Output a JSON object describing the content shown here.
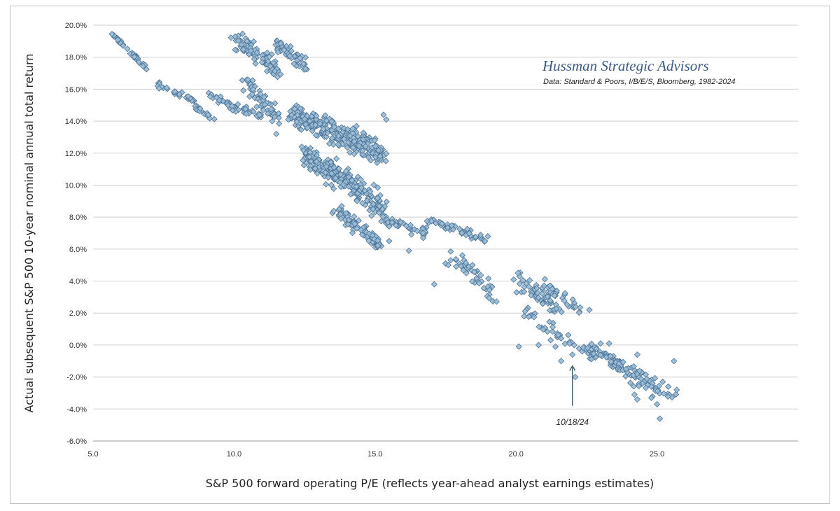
{
  "chart_data": {
    "type": "scatter",
    "title": "",
    "brand": "Hussman Strategic Advisors",
    "source_note": "Data: Standard & Poors, I/B/E/S, Bloomberg, 1982-2024",
    "xlabel": "S&P 500 forward operating P/E (reflects year-ahead analyst earnings estimates)",
    "ylabel": "Actual subsequent S&P 500 10-year nominal annual total return",
    "xlim": [
      5,
      30
    ],
    "ylim": [
      -6,
      20
    ],
    "x_ticks": [
      5,
      10,
      15,
      20,
      25
    ],
    "x_tick_labels": [
      "5.0",
      "10.0",
      "15.0",
      "20.0",
      "25.0"
    ],
    "y_ticks": [
      -6,
      -4,
      -2,
      0,
      2,
      4,
      6,
      8,
      10,
      12,
      14,
      16,
      18,
      20
    ],
    "y_tick_labels": [
      "-6.0%",
      "-4.0%",
      "-2.0%",
      "0.0%",
      "2.0%",
      "4.0%",
      "6.0%",
      "8.0%",
      "10.0%",
      "12.0%",
      "14.0%",
      "16.0%",
      "18.0%",
      "20.0%"
    ],
    "grid": "horizontal",
    "marker": "diamond",
    "marker_color": "#9bbdd6",
    "marker_edge": "#4d7396",
    "annotation": {
      "text": "10/18/24",
      "x": 22.0,
      "y": -0.4
    },
    "clusters": [
      {
        "x": [
          5.7,
          6.9
        ],
        "y": [
          19.4,
          17.3
        ],
        "n": 32,
        "spread": 0.22
      },
      {
        "x": [
          7.3,
          8.6
        ],
        "y": [
          16.3,
          15.3
        ],
        "n": 32,
        "spread": 0.28
      },
      {
        "x": [
          8.6,
          9.3
        ],
        "y": [
          14.9,
          14.1
        ],
        "n": 18,
        "spread": 0.2
      },
      {
        "x": [
          9.1,
          11.0
        ],
        "y": [
          15.6,
          14.3
        ],
        "n": 45,
        "spread": 0.4
      },
      {
        "x": [
          10.0,
          11.6
        ],
        "y": [
          19.2,
          17.2
        ],
        "n": 85,
        "spread": 0.95
      },
      {
        "x": [
          11.5,
          12.6
        ],
        "y": [
          18.8,
          17.4
        ],
        "n": 55,
        "spread": 0.7
      },
      {
        "x": [
          10.4,
          11.6
        ],
        "y": [
          16.4,
          14.2
        ],
        "n": 60,
        "spread": 0.9
      },
      {
        "x": [
          12.0,
          15.3
        ],
        "y": [
          14.5,
          12.0
        ],
        "n": 300,
        "spread": 1.1
      },
      {
        "x": [
          12.5,
          15.3
        ],
        "y": [
          12.0,
          8.6
        ],
        "n": 250,
        "spread": 1.1
      },
      {
        "x": [
          13.6,
          15.2
        ],
        "y": [
          8.5,
          6.2
        ],
        "n": 90,
        "spread": 0.7
      },
      {
        "x": [
          15.2,
          17.0
        ],
        "y": [
          7.9,
          6.9
        ],
        "n": 45,
        "spread": 0.45
      },
      {
        "x": [
          16.8,
          18.9
        ],
        "y": [
          7.8,
          6.7
        ],
        "n": 45,
        "spread": 0.35
      },
      {
        "x": [
          17.5,
          19.3
        ],
        "y": [
          6.0,
          3.0
        ],
        "n": 42,
        "spread": 0.8
      },
      {
        "x": [
          19.8,
          21.6
        ],
        "y": [
          4.4,
          2.2
        ],
        "n": 55,
        "spread": 0.8
      },
      {
        "x": [
          21.0,
          22.3
        ],
        "y": [
          3.9,
          2.0
        ],
        "n": 30,
        "spread": 0.6
      },
      {
        "x": [
          20.2,
          21.8
        ],
        "y": [
          2.2,
          0.2
        ],
        "n": 28,
        "spread": 0.8
      },
      {
        "x": [
          21.8,
          22.8
        ],
        "y": [
          0.5,
          -0.8
        ],
        "n": 20,
        "spread": 0.5
      },
      {
        "x": [
          22.5,
          23.8
        ],
        "y": [
          0.0,
          -1.4
        ],
        "n": 40,
        "spread": 0.5
      },
      {
        "x": [
          23.2,
          25.0
        ],
        "y": [
          -0.8,
          -2.6
        ],
        "n": 60,
        "spread": 0.7
      },
      {
        "x": [
          24.0,
          25.7
        ],
        "y": [
          -2.2,
          -3.2
        ],
        "n": 18,
        "spread": 0.6
      }
    ],
    "points": [
      [
        17.1,
        3.8
      ],
      [
        17.5,
        5.1
      ],
      [
        17.6,
        5.0
      ],
      [
        20.1,
        -0.1
      ],
      [
        20.8,
        0.0
      ],
      [
        21.4,
        -0.1
      ],
      [
        22.1,
        -2.0
      ],
      [
        21.6,
        -1.0
      ],
      [
        22.6,
        2.2
      ],
      [
        24.3,
        -3.4
      ],
      [
        24.2,
        -3.1
      ],
      [
        25.0,
        -3.7
      ],
      [
        25.1,
        -4.6
      ],
      [
        25.6,
        -1.0
      ],
      [
        25.7,
        -2.8
      ],
      [
        25.4,
        -2.6
      ],
      [
        25.2,
        -2.3
      ],
      [
        24.8,
        -3.3
      ],
      [
        15.4,
        14.1
      ],
      [
        15.3,
        14.4
      ],
      [
        11.5,
        13.2
      ],
      [
        12.4,
        12.4
      ],
      [
        14.5,
        7.2
      ],
      [
        15.5,
        6.5
      ],
      [
        16.2,
        5.9
      ],
      [
        19.0,
        6.8
      ],
      [
        18.9,
        6.5
      ],
      [
        21.9,
        0.1
      ],
      [
        22.0,
        -0.6
      ],
      [
        23.0,
        0.1
      ],
      [
        23.3,
        0.1
      ],
      [
        24.3,
        -0.6
      ]
    ]
  }
}
